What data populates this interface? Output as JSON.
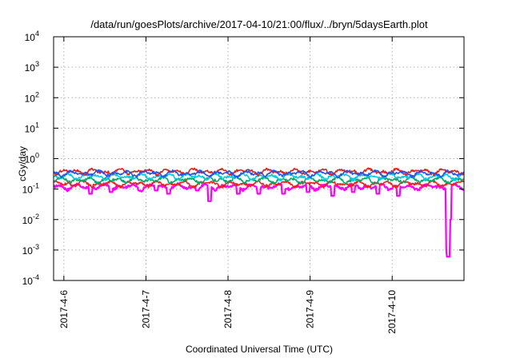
{
  "chart_data": {
    "type": "line",
    "title": "/data/run/goesPlots/archive/2017-04-10/21:00/flux/../bryn/5daysEarth.plot",
    "xlabel": "Coordinated Universal Time (UTC)",
    "ylabel": "cGy/day",
    "yscale": "log",
    "ylim": [
      0.0001,
      10000
    ],
    "y_ticks": [
      {
        "base": "10",
        "exp": "-4"
      },
      {
        "base": "10",
        "exp": "-3"
      },
      {
        "base": "10",
        "exp": "-2"
      },
      {
        "base": "10",
        "exp": "-1"
      },
      {
        "base": "10",
        "exp": "0"
      },
      {
        "base": "10",
        "exp": "1"
      },
      {
        "base": "10",
        "exp": "2"
      },
      {
        "base": "10",
        "exp": "3"
      },
      {
        "base": "10",
        "exp": "4"
      }
    ],
    "x_range": [
      "2017-04-05T21:00",
      "2017-04-10T21:00"
    ],
    "x_ticks": [
      "2017-4-6",
      "2017-4-7",
      "2017-4-8",
      "2017-4-9",
      "2017-4-10"
    ],
    "grid": true,
    "series": [
      {
        "color": "#ff00ff",
        "base": 0.12,
        "dips": [
          {
            "t": 0.09,
            "v": 0.07
          },
          {
            "t": 0.14,
            "v": 0.08
          },
          {
            "t": 0.21,
            "v": 0.09
          },
          {
            "t": 0.25,
            "v": 0.09
          },
          {
            "t": 0.28,
            "v": 0.07
          },
          {
            "t": 0.35,
            "v": 0.09
          },
          {
            "t": 0.38,
            "v": 0.04
          },
          {
            "t": 0.45,
            "v": 0.07
          },
          {
            "t": 0.5,
            "v": 0.07
          },
          {
            "t": 0.56,
            "v": 0.07
          },
          {
            "t": 0.62,
            "v": 0.08
          },
          {
            "t": 0.68,
            "v": 0.06
          },
          {
            "t": 0.73,
            "v": 0.08
          },
          {
            "t": 0.79,
            "v": 0.07
          },
          {
            "t": 0.84,
            "v": 0.06
          },
          {
            "t": 0.959,
            "v": 0.001
          },
          {
            "t": 0.962,
            "v": 0.0006
          },
          {
            "t": 0.965,
            "v": 0.01
          }
        ]
      },
      {
        "color": "#ff1a1a",
        "base": 0.15,
        "dips": []
      },
      {
        "color": "#00aa66",
        "base": 0.2,
        "dips": []
      },
      {
        "color": "#00ccdd",
        "base": 0.26,
        "dips": []
      },
      {
        "color": "#dd2222",
        "base": 0.38,
        "dips": []
      },
      {
        "color": "#2255ee",
        "base": 0.33,
        "dips": []
      }
    ]
  }
}
